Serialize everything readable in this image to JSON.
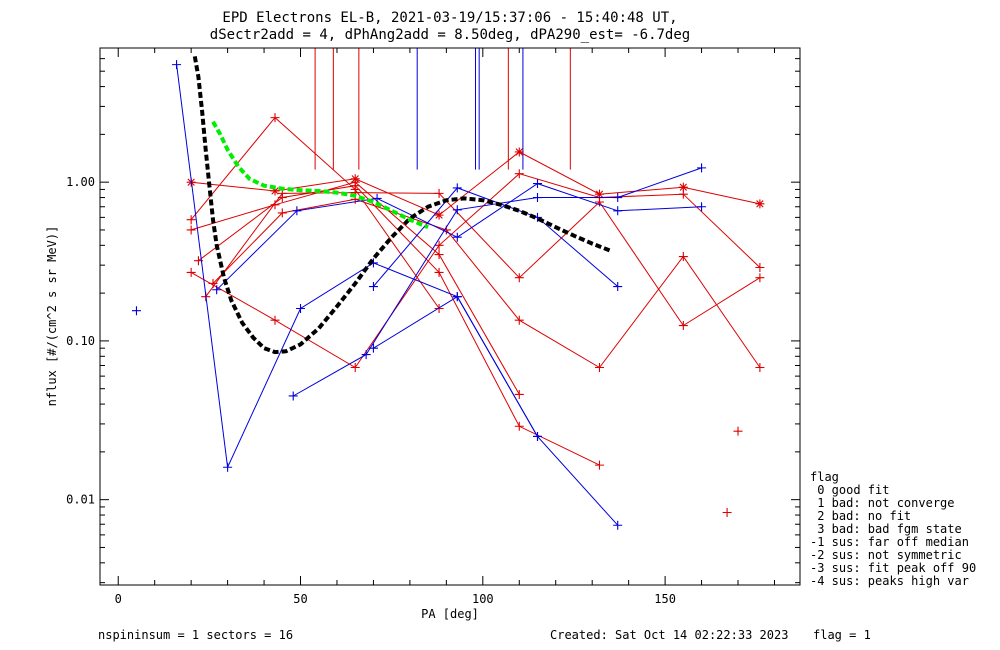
{
  "chart_data": {
    "type": "scatter",
    "title_lines": [
      "EPD Electrons EL-B, 2021-03-19/15:37:06 - 15:40:48 UT,",
      "dSectr2add = 4, dPhAng2add = 8.50deg, dPA290_est=  -6.7deg"
    ],
    "xlabel": "PA [deg]",
    "ylabel": "nflux [#/(cm^2 s sr MeV)]",
    "x_scale": "linear",
    "y_scale": "log",
    "xlim": [
      -5,
      187
    ],
    "ylim": [
      0.0029,
      7.0
    ],
    "x_ticks": [
      {
        "v": 0,
        "label": "0"
      },
      {
        "v": 50,
        "label": "50"
      },
      {
        "v": 100,
        "label": "100"
      },
      {
        "v": 150,
        "label": "150"
      }
    ],
    "y_ticks": [
      {
        "v": 0.01,
        "label": "0.01"
      },
      {
        "v": 0.1,
        "label": "0.10"
      },
      {
        "v": 1.0,
        "label": "1.00"
      }
    ],
    "colors": {
      "red": "#dd0000",
      "blue": "#0000dd",
      "black": "#000000",
      "green": "#00ee00"
    },
    "red_series": [
      {
        "marker": "star",
        "points": [
          [
            20,
            1.0
          ],
          [
            43,
            0.88
          ],
          [
            65,
            1.05
          ],
          [
            88,
            0.62
          ],
          [
            110,
            1.55
          ],
          [
            132,
            0.84
          ],
          [
            155,
            0.93
          ],
          [
            176,
            0.73
          ]
        ]
      },
      {
        "marker": "plus",
        "points": [
          [
            20,
            0.58
          ],
          [
            43,
            2.55
          ],
          [
            65,
            0.9
          ],
          [
            88,
            0.16
          ]
        ]
      },
      {
        "marker": "plus",
        "points": [
          [
            20,
            0.5
          ],
          [
            43,
            0.72
          ],
          [
            65,
            1.0
          ],
          [
            88,
            0.35
          ],
          [
            110,
            0.046
          ]
        ]
      },
      {
        "marker": "plus",
        "points": [
          [
            20,
            0.27
          ],
          [
            43,
            0.135
          ],
          [
            65,
            0.068
          ],
          [
            88,
            0.4
          ],
          [
            110,
            1.13
          ],
          [
            132,
            0.8
          ],
          [
            155,
            0.84
          ],
          [
            176,
            0.29
          ]
        ]
      },
      {
        "marker": "plus",
        "points": [
          [
            22,
            0.32
          ],
          [
            45,
            0.8
          ],
          [
            65,
            0.95
          ],
          [
            88,
            0.27
          ],
          [
            110,
            0.029
          ],
          [
            132,
            0.0165
          ]
        ]
      },
      {
        "marker": "plus",
        "points": [
          [
            24,
            0.19
          ],
          [
            45,
            0.85
          ],
          [
            65,
            0.86
          ],
          [
            88,
            0.85
          ],
          [
            110,
            0.25
          ],
          [
            132,
            0.75
          ],
          [
            155,
            0.125
          ],
          [
            176,
            0.25
          ]
        ]
      },
      {
        "marker": "plus",
        "points": [
          [
            26,
            0.23
          ],
          [
            45,
            0.64
          ],
          [
            65,
            0.78
          ],
          [
            90,
            0.5
          ],
          [
            110,
            0.135
          ],
          [
            132,
            0.068
          ],
          [
            155,
            0.34
          ],
          [
            176,
            0.068
          ]
        ]
      },
      {
        "marker": "plus",
        "points": [
          [
            170,
            0.027
          ]
        ]
      },
      {
        "marker": "plus",
        "points": [
          [
            167,
            0.0083
          ]
        ]
      }
    ],
    "blue_series": [
      {
        "marker": "plus",
        "points": [
          [
            5,
            0.155
          ]
        ]
      },
      {
        "marker": "plus",
        "points": [
          [
            16,
            5.5
          ],
          [
            30,
            0.016
          ],
          [
            50,
            0.16
          ],
          [
            70,
            0.31
          ],
          [
            93,
            0.19
          ],
          [
            115,
            0.025
          ],
          [
            137,
            0.0069
          ]
        ]
      },
      {
        "marker": "plus",
        "points": [
          [
            48,
            0.045
          ],
          [
            68,
            0.082
          ],
          [
            93,
            0.67
          ],
          [
            115,
            0.8
          ],
          [
            137,
            0.8
          ],
          [
            160,
            1.23
          ]
        ]
      },
      {
        "marker": "plus",
        "points": [
          [
            27,
            0.21
          ],
          [
            49,
            0.66
          ],
          [
            71,
            0.79
          ],
          [
            93,
            0.45
          ],
          [
            115,
            0.98
          ],
          [
            137,
            0.66
          ],
          [
            160,
            0.7
          ]
        ]
      },
      {
        "marker": "plus",
        "points": [
          [
            70,
            0.22
          ],
          [
            93,
            0.92
          ],
          [
            115,
            0.6
          ],
          [
            137,
            0.22
          ]
        ]
      },
      {
        "marker": "plus",
        "points": [
          [
            70,
            0.09
          ],
          [
            93,
            0.19
          ],
          [
            115,
            0.025
          ]
        ]
      }
    ],
    "vertical_lines": {
      "y_top": 7.0,
      "red": [
        {
          "x": 54,
          "y_bottom": 1.2
        },
        {
          "x": 59,
          "y_bottom": 1.2
        },
        {
          "x": 66,
          "y_bottom": 1.2
        },
        {
          "x": 107,
          "y_bottom": 1.2
        },
        {
          "x": 124,
          "y_bottom": 1.2
        }
      ],
      "blue": [
        {
          "x": 82,
          "y_bottom": 1.2
        },
        {
          "x": 98,
          "y_bottom": 1.2
        },
        {
          "x": 99,
          "y_bottom": 1.2
        },
        {
          "x": 111,
          "y_bottom": 1.2
        }
      ]
    },
    "black_fit_curve": [
      [
        21,
        6.2
      ],
      [
        22,
        4.6
      ],
      [
        23,
        2.8
      ],
      [
        24,
        1.6
      ],
      [
        25,
        0.95
      ],
      [
        26,
        0.58
      ],
      [
        27,
        0.4
      ],
      [
        29,
        0.25
      ],
      [
        31,
        0.18
      ],
      [
        34,
        0.13
      ],
      [
        37,
        0.105
      ],
      [
        40,
        0.09
      ],
      [
        43,
        0.085
      ],
      [
        46,
        0.086
      ],
      [
        50,
        0.095
      ],
      [
        55,
        0.12
      ],
      [
        60,
        0.165
      ],
      [
        65,
        0.23
      ],
      [
        70,
        0.33
      ],
      [
        75,
        0.45
      ],
      [
        80,
        0.59
      ],
      [
        85,
        0.7
      ],
      [
        90,
        0.77
      ],
      [
        95,
        0.79
      ],
      [
        100,
        0.77
      ],
      [
        105,
        0.72
      ],
      [
        110,
        0.66
      ],
      [
        115,
        0.59
      ],
      [
        120,
        0.52
      ],
      [
        125,
        0.46
      ],
      [
        130,
        0.41
      ],
      [
        135,
        0.37
      ]
    ],
    "green_fit_curve": [
      [
        26,
        2.4
      ],
      [
        28,
        2.0
      ],
      [
        30,
        1.6
      ],
      [
        33,
        1.25
      ],
      [
        36,
        1.05
      ],
      [
        40,
        0.95
      ],
      [
        45,
        0.91
      ],
      [
        50,
        0.89
      ],
      [
        55,
        0.88
      ],
      [
        60,
        0.86
      ],
      [
        65,
        0.82
      ],
      [
        70,
        0.75
      ],
      [
        75,
        0.66
      ],
      [
        80,
        0.58
      ],
      [
        85,
        0.52
      ]
    ],
    "legend": {
      "placement": "right",
      "lines": [
        "flag",
        " 0 good fit",
        " 1 bad: not converge",
        " 2 bad: no fit",
        " 3 bad: bad fgm state",
        "-1 sus: far off median",
        "-2 sus: not symmetric",
        "-3 sus: fit peak off 90",
        "-4 sus: peaks high var"
      ]
    },
    "footer": {
      "left": "nspininsum =  1  sectors = 16",
      "created": "Created: Sat Oct 14 02:22:33 2023",
      "flag": "flag = 1"
    }
  }
}
